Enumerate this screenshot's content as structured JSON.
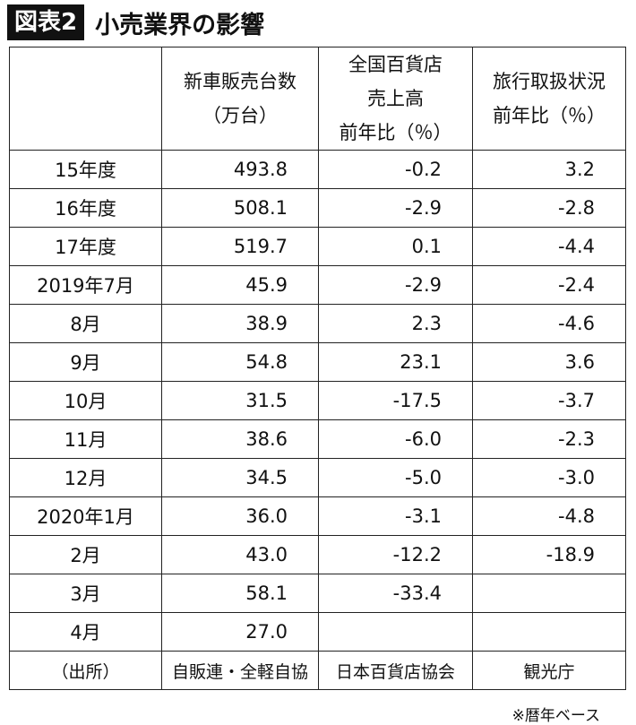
{
  "header": {
    "badge": "図表2",
    "title": "小売業界の影響"
  },
  "table": {
    "columns": [
      null,
      [
        "新車販売台数",
        "（万台）"
      ],
      [
        "全国百貨店",
        "売上高",
        "前年比（％）"
      ],
      [
        "旅行取扱状況",
        "前年比（％）"
      ]
    ],
    "rows": [
      [
        "15年度",
        "493.8",
        "-0.2",
        "3.2"
      ],
      [
        "16年度",
        "508.1",
        "-2.9",
        "-2.8"
      ],
      [
        "17年度",
        "519.7",
        "0.1",
        "-4.4"
      ],
      [
        "2019年7月",
        "45.9",
        "-2.9",
        "-2.4"
      ],
      [
        "8月",
        "38.9",
        "2.3",
        "-4.6"
      ],
      [
        "9月",
        "54.8",
        "23.1",
        "3.6"
      ],
      [
        "10月",
        "31.5",
        "-17.5",
        "-3.7"
      ],
      [
        "11月",
        "38.6",
        "-6.0",
        "-2.3"
      ],
      [
        "12月",
        "34.5",
        "-5.0",
        "-3.0"
      ],
      [
        "2020年1月",
        "36.0",
        "-3.1",
        "-4.8"
      ],
      [
        "2月",
        "43.0",
        "-12.2",
        "-18.9"
      ],
      [
        "3月",
        "58.1",
        "-33.4",
        null
      ],
      [
        "4月",
        "27.0",
        null,
        null
      ]
    ],
    "source": [
      "（出所）",
      "自販連・全軽自協",
      "日本百貨店協会",
      "観光庁"
    ]
  },
  "footnote": "※暦年ベース"
}
